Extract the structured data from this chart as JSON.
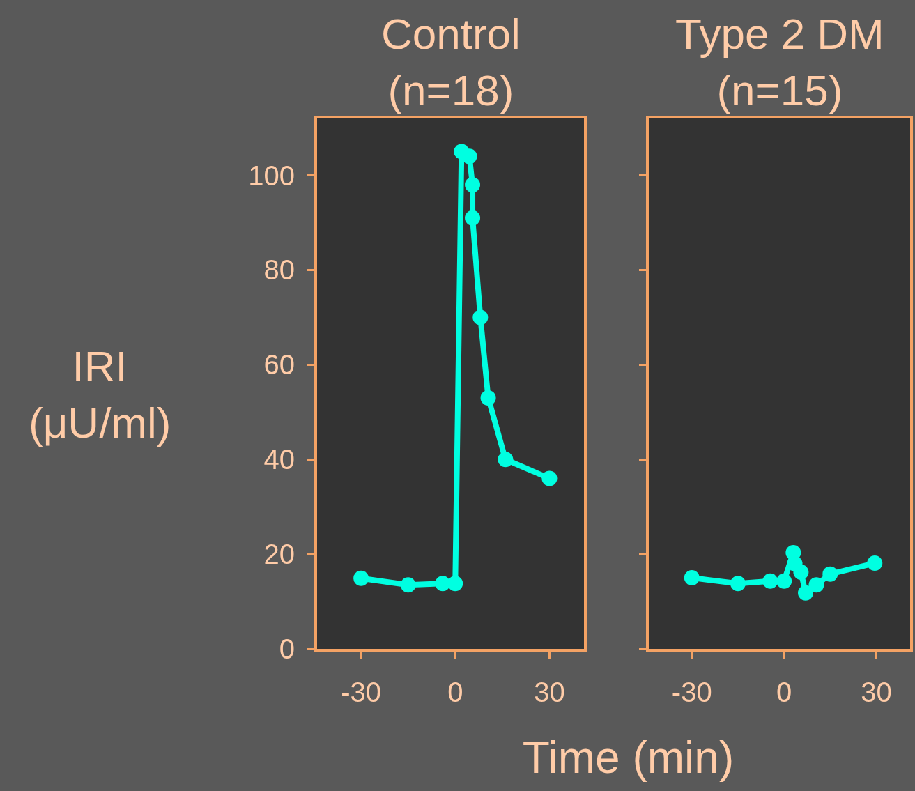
{
  "chart_data": [
    {
      "type": "line",
      "title": "Control\n(n=18)",
      "ylabel": "IRI\n(μU/ml)",
      "xlabel": "Time (min)",
      "xlim": [
        -44,
        41
      ],
      "ylim": [
        0,
        112
      ],
      "xticks": [
        -30,
        0,
        30
      ],
      "yticks": [
        0,
        20,
        40,
        60,
        80,
        100
      ],
      "legend": false,
      "marker": "circle",
      "line_style": "solid",
      "series": [
        {
          "color": "#00ffe1",
          "x": [
            -30,
            -15,
            -4,
            0,
            2,
            4.5,
            5.5,
            5.5,
            8,
            10.5,
            16,
            30
          ],
          "values": [
            14.9,
            13.5,
            13.8,
            13.8,
            105,
            104,
            98,
            91,
            70,
            53,
            40,
            36
          ]
        }
      ]
    },
    {
      "type": "line",
      "title": "Type 2 DM\n(n=15)",
      "xlim": [
        -44,
        41
      ],
      "ylim": [
        0,
        112
      ],
      "xticks": [
        -30,
        0,
        30
      ],
      "yticks": [
        0,
        20,
        40,
        60,
        80,
        100
      ],
      "tick_labels": "x",
      "legend": false,
      "marker": "circle",
      "line_style": "solid",
      "series": [
        {
          "color": "#00ffe1",
          "x": [
            -30,
            -15,
            -4.5,
            0,
            3,
            3.5,
            5.5,
            7,
            10.5,
            15,
            29.5
          ],
          "values": [
            15,
            13.8,
            14.3,
            14.3,
            20.3,
            18,
            16.2,
            11.8,
            13.5,
            15.8,
            18.1
          ]
        }
      ]
    }
  ]
}
